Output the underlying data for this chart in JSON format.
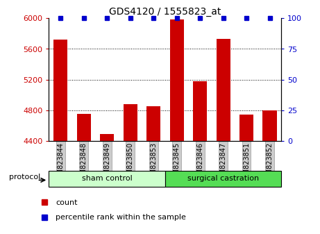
{
  "title": "GDS4120 / 1555823_at",
  "samples": [
    "GSM823844",
    "GSM823848",
    "GSM823849",
    "GSM823850",
    "GSM823853",
    "GSM823845",
    "GSM823846",
    "GSM823847",
    "GSM823851",
    "GSM823852"
  ],
  "count_values": [
    5720,
    4755,
    4495,
    4880,
    4855,
    5980,
    5175,
    5730,
    4740,
    4800
  ],
  "percentile_values": [
    100,
    100,
    100,
    100,
    100,
    100,
    100,
    100,
    100,
    100
  ],
  "groups": [
    {
      "label": "sham control",
      "start": 0,
      "end": 5,
      "color": "#ccffcc"
    },
    {
      "label": "surgical castration",
      "start": 5,
      "end": 10,
      "color": "#55dd55"
    }
  ],
  "bar_color": "#cc0000",
  "percentile_color": "#0000cc",
  "ylim_left": [
    4400,
    6000
  ],
  "ylim_right": [
    0,
    100
  ],
  "yticks_left": [
    4400,
    4800,
    5200,
    5600,
    6000
  ],
  "yticks_right": [
    0,
    25,
    50,
    75,
    100
  ],
  "background_color": "#ffffff",
  "tick_label_color_left": "#cc0000",
  "tick_label_color_right": "#0000cc",
  "protocol_label": "protocol",
  "bar_width": 0.6,
  "percentile_marker_size": 5,
  "xlabel_color": "#000000",
  "tick_box_color": "#cccccc"
}
